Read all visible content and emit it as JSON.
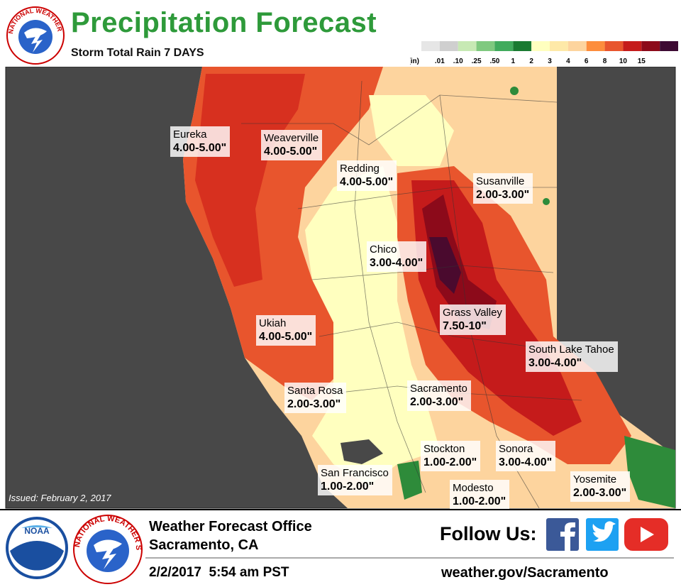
{
  "header": {
    "title": "Precipitation Forecast",
    "subtitle": "Storm Total Rain 7 DAYS",
    "nws_logo_text": "NATIONAL WEATHER SERVICE"
  },
  "legend": {
    "unit": "(in)",
    "ticks": [
      ".01",
      ".10",
      ".25",
      ".50",
      "1",
      "2",
      "3",
      "4",
      "6",
      "8",
      "10",
      "15"
    ],
    "colors": [
      "#e6e6e6",
      "#cfcfcf",
      "#c7e9b4",
      "#7fc97f",
      "#41ab5d",
      "#1a7a32",
      "#ffffbf",
      "#fee9a8",
      "#fdd49e",
      "#fd8d3c",
      "#e8552d",
      "#c51b1b",
      "#8c0a1a",
      "#3d0a33"
    ]
  },
  "cities": [
    {
      "name": "Eureka",
      "amount": "4.00-5.00\""
    },
    {
      "name": "Weaverville",
      "amount": "4.00-5.00\""
    },
    {
      "name": "Redding",
      "amount": "4.00-5.00\""
    },
    {
      "name": "Susanville",
      "amount": "2.00-3.00\""
    },
    {
      "name": "Chico",
      "amount": "3.00-4.00\""
    },
    {
      "name": "Grass Valley",
      "amount": "7.50-10\""
    },
    {
      "name": "South Lake Tahoe",
      "amount": "3.00-4.00\""
    },
    {
      "name": "Ukiah",
      "amount": "4.00-5.00\""
    },
    {
      "name": "Santa Rosa",
      "amount": "2.00-3.00\""
    },
    {
      "name": "Sacramento",
      "amount": "2.00-3.00\""
    },
    {
      "name": "Stockton",
      "amount": "1.00-2.00\""
    },
    {
      "name": "Sonora",
      "amount": "3.00-4.00\""
    },
    {
      "name": "San Francisco",
      "amount": "1.00-2.00\""
    },
    {
      "name": "Modesto",
      "amount": "1.00-2.00\""
    },
    {
      "name": "Yosemite",
      "amount": "2.00-3.00\""
    }
  ],
  "issued": "Issued: February 2, 2017",
  "footer": {
    "noaa_logo_text": "NOAA",
    "office": "Weather Forecast Office",
    "location": "Sacramento, CA",
    "timestamp": "2/2/2017  5:54 am PST",
    "follow": "Follow Us:",
    "website": "weather.gov/Sacramento"
  }
}
